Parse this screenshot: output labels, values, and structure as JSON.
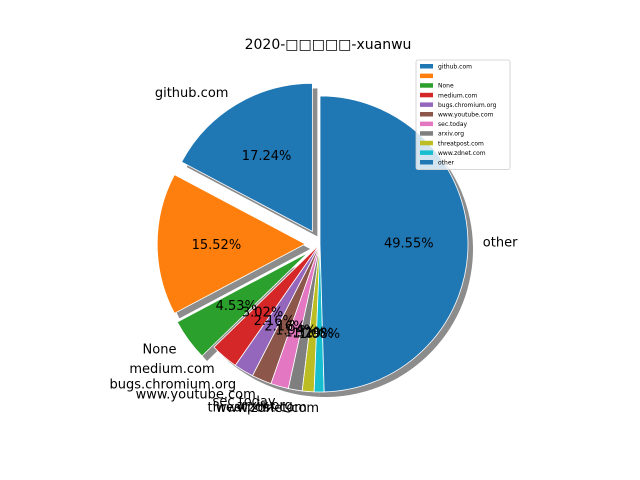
{
  "chart_data": {
    "type": "pie",
    "title": "2020-□□□□□-xuanwu",
    "start_angle_deg": 90,
    "direction": "counterclockwise",
    "shadow": true,
    "legend": "top-right",
    "slices": [
      {
        "label": "github.com",
        "value": 17.24,
        "pct_text": "17.24%",
        "color": "#1f77b4",
        "explode": 0.1
      },
      {
        "label": "",
        "value": 15.52,
        "pct_text": "15.52%",
        "color": "#ff7f0e",
        "explode": 0.1
      },
      {
        "label": "None",
        "value": 4.53,
        "pct_text": "4.53%",
        "color": "#2ca02c",
        "explode": 0.1
      },
      {
        "label": "medium.com",
        "value": 3.02,
        "pct_text": "3.02%",
        "color": "#d62728",
        "explode": 0
      },
      {
        "label": "bugs.chromium.org",
        "value": 2.16,
        "pct_text": "2.16%",
        "color": "#9467bd",
        "explode": 0
      },
      {
        "label": "www.youtube.com",
        "value": 2.16,
        "pct_text": "2.16%",
        "color": "#8c564b",
        "explode": 0
      },
      {
        "label": "sec.today",
        "value": 1.94,
        "pct_text": "1.94%",
        "color": "#e377c2",
        "explode": 0
      },
      {
        "label": "arxiv.org",
        "value": 1.51,
        "pct_text": "1.51%",
        "color": "#7f7f7f",
        "explode": 0
      },
      {
        "label": "threatpost.com",
        "value": 1.29,
        "pct_text": "1.29%",
        "color": "#bcbd22",
        "explode": 0
      },
      {
        "label": "www.zdnet.com",
        "value": 1.08,
        "pct_text": "1.08%",
        "color": "#17becf",
        "explode": 0
      },
      {
        "label": "other",
        "value": 49.55,
        "pct_text": "49.55%",
        "color": "#1f77b4",
        "explode": 0
      }
    ]
  }
}
